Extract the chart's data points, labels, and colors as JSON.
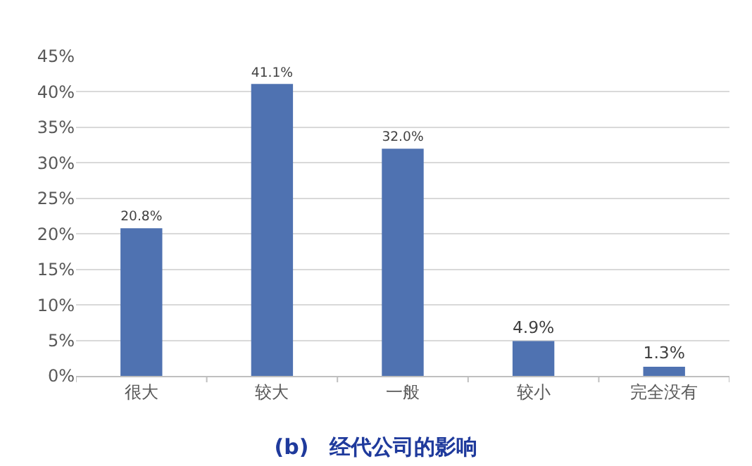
{
  "chart_data": {
    "type": "bar",
    "title": "(b)　经代公司的影响",
    "categories": [
      "很大",
      "较大",
      "一般",
      "较小",
      "完全没有"
    ],
    "values": [
      20.8,
      41.1,
      32.0,
      4.9,
      1.3
    ],
    "value_labels": [
      "20.8%",
      "41.1%",
      "32.0%",
      "4.9%",
      "1.3%"
    ],
    "color": "#4f72b1",
    "ylim": [
      0,
      45
    ],
    "yticks": [
      {
        "value": 0,
        "label": "0%"
      },
      {
        "value": 5,
        "label": "5%"
      },
      {
        "value": 10,
        "label": "10%"
      },
      {
        "value": 15,
        "label": "15%"
      },
      {
        "value": 20,
        "label": "20%"
      },
      {
        "value": 25,
        "label": "25%"
      },
      {
        "value": 30,
        "label": "30%"
      },
      {
        "value": 35,
        "label": "35%"
      },
      {
        "value": 40,
        "label": "40%"
      },
      {
        "value": 45,
        "label": "45%"
      }
    ],
    "grid": "y",
    "legend": false
  }
}
